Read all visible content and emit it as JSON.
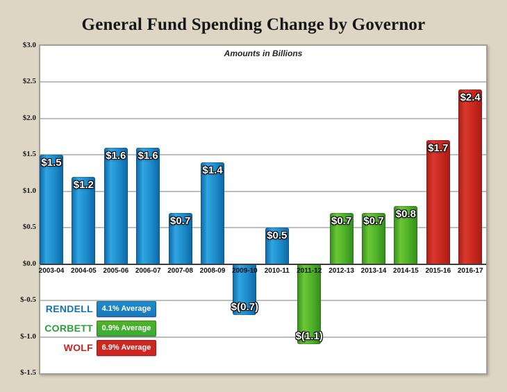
{
  "chart_data": {
    "type": "bar",
    "title": "General Fund Spending Change by Governor",
    "subtitle": "Amounts in Billions",
    "xlabel": "",
    "ylabel": "",
    "ylim": [
      -1.5,
      3.0
    ],
    "grid": true,
    "y_ticks": [
      {
        "label": "$3.0",
        "value": 3.0
      },
      {
        "label": "$2.5",
        "value": 2.5
      },
      {
        "label": "$2.0",
        "value": 2.0
      },
      {
        "label": "$1.5",
        "value": 1.5
      },
      {
        "label": "$1.0",
        "value": 1.0
      },
      {
        "label": "$0.5",
        "value": 0.5
      },
      {
        "label": "$0.0",
        "value": 0.0
      },
      {
        "label": "$-0.5",
        "value": -0.5
      },
      {
        "label": "$-1.0",
        "value": -1.0
      },
      {
        "label": "$-1.5",
        "value": -1.5
      }
    ],
    "categories": [
      "2003-04",
      "2004-05",
      "2005-06",
      "2006-07",
      "2007-08",
      "2008-09",
      "2009-10",
      "2010-11",
      "2011-12",
      "2012-13",
      "2013-14",
      "2014-15",
      "2015-16",
      "2016-17"
    ],
    "points": [
      {
        "year": "2003-04",
        "value": 1.5,
        "label": "$1.5",
        "governor": "rendell"
      },
      {
        "year": "2004-05",
        "value": 1.2,
        "label": "$1.2",
        "governor": "rendell"
      },
      {
        "year": "2005-06",
        "value": 1.6,
        "label": "$1.6",
        "governor": "rendell"
      },
      {
        "year": "2006-07",
        "value": 1.6,
        "label": "$1.6",
        "governor": "rendell"
      },
      {
        "year": "2007-08",
        "value": 0.7,
        "label": "$0.7",
        "governor": "rendell"
      },
      {
        "year": "2008-09",
        "value": 1.4,
        "label": "$1.4",
        "governor": "rendell"
      },
      {
        "year": "2009-10",
        "value": -0.7,
        "label": "$(0.7)",
        "governor": "rendell"
      },
      {
        "year": "2010-11",
        "value": 0.5,
        "label": "$0.5",
        "governor": "rendell"
      },
      {
        "year": "2011-12",
        "value": -1.1,
        "label": "$(1.1)",
        "governor": "corbett"
      },
      {
        "year": "2012-13",
        "value": 0.7,
        "label": "$0.7",
        "governor": "corbett"
      },
      {
        "year": "2013-14",
        "value": 0.7,
        "label": "$0.7",
        "governor": "corbett"
      },
      {
        "year": "2014-15",
        "value": 0.8,
        "label": "$0.8",
        "governor": "corbett"
      },
      {
        "year": "2015-16",
        "value": 1.7,
        "label": "$1.7",
        "governor": "wolf"
      },
      {
        "year": "2016-17",
        "value": 2.4,
        "label": "$2.4",
        "governor": "wolf"
      }
    ],
    "governors": {
      "rendell": {
        "name": "RENDELL",
        "light": "#2fa5e2",
        "mid": "#1e8dcb",
        "dark": "#0d66a6",
        "badge": "#1b75bb",
        "text": "#1272b9"
      },
      "corbett": {
        "name": "CORBETT",
        "light": "#6cc736",
        "mid": "#4fb228",
        "dark": "#338c1d",
        "badge": "#3aaa35",
        "text": "#2f9e36"
      },
      "wolf": {
        "name": "WOLF",
        "light": "#d9392e",
        "mid": "#c9281f",
        "dark": "#a81d15",
        "badge": "#cf2722",
        "text": "#c4261f"
      }
    },
    "legend": [
      {
        "governor": "rendell",
        "name": "RENDELL",
        "average": "4.1% Average"
      },
      {
        "governor": "corbett",
        "name": "CORBETT",
        "average": "0.9% Average"
      },
      {
        "governor": "wolf",
        "name": "WOLF",
        "average": "6.9% Average"
      }
    ],
    "legend_position": "bottom-left-inside"
  }
}
